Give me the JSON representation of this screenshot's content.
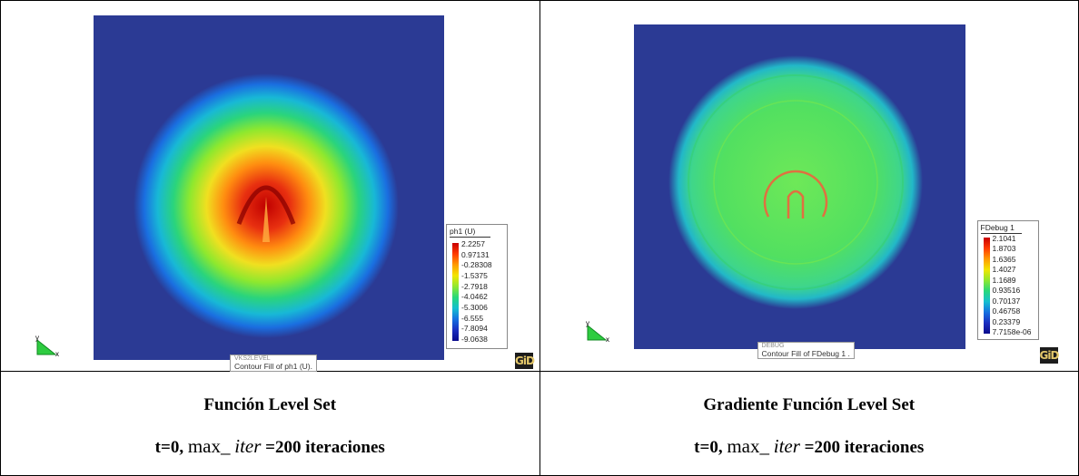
{
  "panels": [
    {
      "legend": {
        "title": "ph1 (U)",
        "values": [
          "2.2257",
          "0.97131",
          "-0.28308",
          "-1.5375",
          "-2.7918",
          "-4.0462",
          "-5.3006",
          "-6.555",
          "-7.8094",
          "-9.0638"
        ]
      },
      "plot_caption": "Contour Fill of ph1 (U).",
      "plot_caption_top": "VKS2LEVEL",
      "axis_y": "y",
      "axis_x": "x",
      "logo": "GiD",
      "caption_title": "Función Level Set",
      "caption_t": "t=0,",
      "caption_max": "max_",
      "caption_iter": "iter",
      "caption_rest": "=200 iteraciones"
    },
    {
      "legend": {
        "title": "FDebug 1",
        "values": [
          "2.1041",
          "1.8703",
          "1.6365",
          "1.4027",
          "1.1689",
          "0.93516",
          "0.70137",
          "0.46758",
          "0.23379",
          "7.7158e-06"
        ]
      },
      "plot_caption": "Contour Fill of FDebug 1 .",
      "plot_caption_top": "DEBUG",
      "axis_y": "y",
      "axis_x": "x",
      "logo": "GiD",
      "caption_title": "Gradiente Función Level Set",
      "caption_t": "t=0,",
      "caption_max": "max_",
      "caption_iter": "iter",
      "caption_rest": "=200 iteraciones"
    }
  ],
  "colors": {
    "background_field": "#2b3a94",
    "colormap": [
      "#c80000",
      "#ff3a00",
      "#ff9a00",
      "#f2e600",
      "#8fe830",
      "#27d87a",
      "#15bfd0",
      "#1570e0",
      "#1a2ec0",
      "#0a0a8c"
    ]
  }
}
